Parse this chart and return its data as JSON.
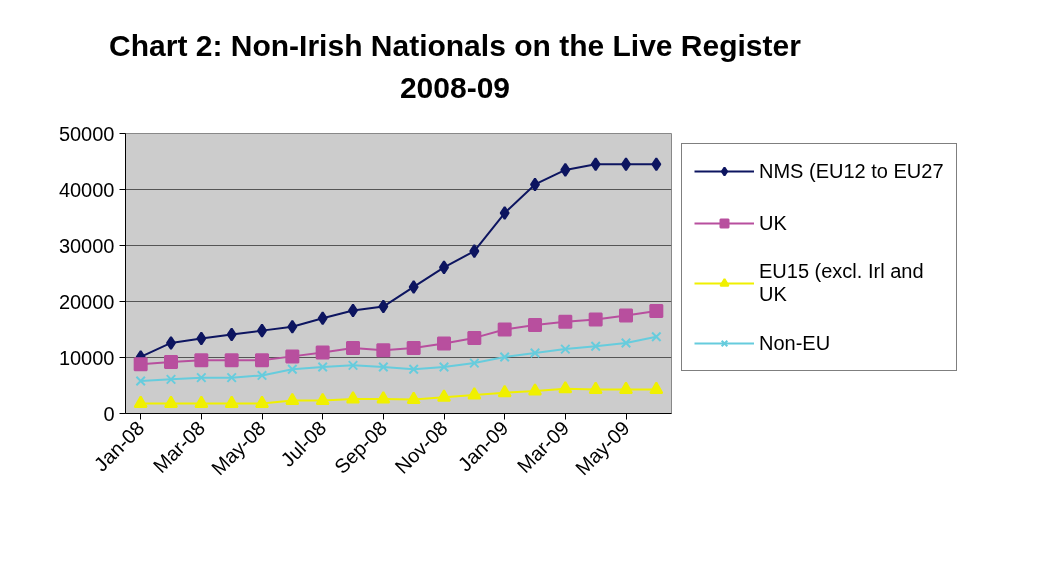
{
  "chart_data": {
    "type": "line",
    "title": "Chart 2: Non-Irish Nationals on the Live Register 2008-09",
    "categories": [
      "Jan-08",
      null,
      "Mar-08",
      null,
      "May-08",
      null,
      "Jul-08",
      null,
      "Sep-08",
      null,
      "Nov-08",
      null,
      "Jan-09",
      null,
      "Mar-09",
      null,
      "May-09",
      null
    ],
    "series": [
      {
        "name": "NMS (EU12 to EU27",
        "color": "#0d1560",
        "marker": "diamond",
        "values": [
          10100,
          12600,
          13400,
          14100,
          14800,
          15500,
          17000,
          18400,
          19100,
          22600,
          26100,
          29000,
          35800,
          40900,
          43500,
          44500,
          44500,
          44500
        ]
      },
      {
        "name": "UK",
        "color": "#b84f9e",
        "marker": "square",
        "values": [
          8800,
          9200,
          9500,
          9500,
          9500,
          10200,
          10900,
          11700,
          11300,
          11700,
          12500,
          13500,
          15000,
          15800,
          16400,
          16800,
          17500,
          18300
        ]
      },
      {
        "name": "EU15 (excl. Irl and UK",
        "color": "#f0f000",
        "marker": "triangle",
        "values": [
          1800,
          1800,
          1800,
          1800,
          1800,
          2300,
          2300,
          2600,
          2600,
          2500,
          2900,
          3300,
          3700,
          4000,
          4400,
          4300,
          4300,
          4300
        ]
      },
      {
        "name": "Non-EU",
        "color": "#66ccdd",
        "marker": "cross",
        "values": [
          5800,
          6100,
          6400,
          6400,
          6800,
          7900,
          8300,
          8600,
          8300,
          7900,
          8300,
          9000,
          10100,
          10800,
          11500,
          12000,
          12600,
          13700
        ]
      }
    ],
    "ylim": [
      0,
      50000
    ],
    "yticks": [
      0,
      10000,
      20000,
      30000,
      40000,
      50000
    ],
    "grid": "y",
    "legend": "right"
  }
}
